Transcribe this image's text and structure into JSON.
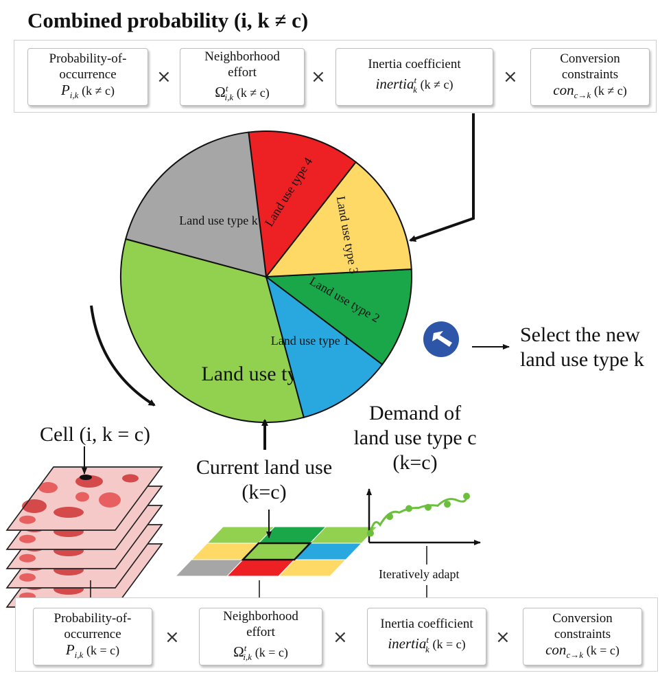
{
  "title": "Combined probability (i, k ≠ c)",
  "top_row": {
    "box1": {
      "line1": "Probability-of-",
      "line2": "occurrence",
      "sym": "P",
      "sub": "i,k",
      "cond": "(k ≠ c)"
    },
    "box2": {
      "line1": "Neighborhood",
      "line2": "effort",
      "sym": "Ω",
      "sup": "t",
      "sub": "i,k",
      "cond": "(k ≠ c)"
    },
    "box3": {
      "line1": "Inertia coefficient",
      "sym": "inertia",
      "sup": "t",
      "sub": "k",
      "cond": "(k ≠ c)"
    },
    "box4": {
      "line1": "Conversion",
      "line2": "constraints",
      "sym": "con",
      "sub": "c→k",
      "cond": "(k ≠ c)"
    },
    "op": "×"
  },
  "pie": {
    "slices": [
      {
        "label": "Land use type c",
        "color": "#92d050",
        "share": 0.3333
      },
      {
        "label": "Land use type 1",
        "color": "#29a8e0",
        "share": 0.1055
      },
      {
        "label": "Land use type 2",
        "color": "#1aa74a",
        "share": 0.1111
      },
      {
        "label": "Land use type 3",
        "color": "#ffd966",
        "share": 0.1361
      },
      {
        "label": "Land use type 4",
        "color": "#ed2024",
        "share": 0.125
      },
      {
        "label": "Land use type k",
        "color": "#a6a6a6",
        "share": 0.1889
      }
    ]
  },
  "select_label": {
    "line1": "Select the new",
    "line2": "land use type k"
  },
  "cell_label": "Cell (i, k = c)",
  "current_label": {
    "line1": "Current land use",
    "line2": "(k=c)"
  },
  "demand_label": {
    "line1": "Demand of",
    "line2": "land use type c",
    "line3": "(k=c)"
  },
  "iterative_label": "Iteratively adapt",
  "demand_points": [
    0.15,
    0.42,
    0.55,
    0.57,
    0.62,
    0.75
  ],
  "grid_colors": [
    [
      "#92d050",
      "#1aa74a",
      "#92d050"
    ],
    [
      "#ffd966",
      "#92d050",
      "#29a8e0"
    ],
    [
      "#a6a6a6",
      "#ed2024",
      "#ffd966"
    ]
  ],
  "bottom_row": {
    "box1": {
      "line1": "Probability-of-",
      "line2": "occurrence",
      "sym": "P",
      "sub": "i,k",
      "cond": "(k = c)"
    },
    "box2": {
      "line1": "Neighborhood",
      "line2": "effort",
      "sym": "Ω",
      "sup": "t",
      "sub": "i,k",
      "cond": "(k = c)"
    },
    "box3": {
      "line1": "Inertia coefficient",
      "sym": "inertia",
      "sup": "t",
      "sub": "k",
      "cond": "(k = c)"
    },
    "box4": {
      "line1": "Conversion",
      "line2": "constraints",
      "sym": "con",
      "sub": "c→k",
      "cond": "(k = c)"
    },
    "op": "×"
  }
}
